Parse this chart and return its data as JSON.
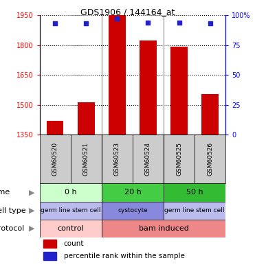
{
  "title": "GDS1906 / 144164_at",
  "samples": [
    "GSM60520",
    "GSM60521",
    "GSM60523",
    "GSM60524",
    "GSM60525",
    "GSM60526"
  ],
  "bar_values": [
    1420,
    1515,
    1950,
    1822,
    1793,
    1555
  ],
  "percentile_values": [
    93,
    93,
    97,
    94,
    94,
    93
  ],
  "ylim_left": [
    1350,
    1950
  ],
  "ylim_right": [
    0,
    100
  ],
  "yticks_left": [
    1350,
    1500,
    1650,
    1800,
    1950
  ],
  "yticks_right": [
    0,
    25,
    50,
    75,
    100
  ],
  "bar_color": "#cc0000",
  "dot_color": "#2222cc",
  "bar_width": 0.55,
  "time_info": [
    [
      0,
      2,
      "0 h",
      "#ccffcc"
    ],
    [
      2,
      4,
      "20 h",
      "#44cc44"
    ],
    [
      4,
      6,
      "50 h",
      "#33bb33"
    ]
  ],
  "cell_info": [
    [
      0,
      2,
      "germ line stem cell",
      "#bbbbee"
    ],
    [
      2,
      4,
      "cystocyte",
      "#8888dd"
    ],
    [
      4,
      6,
      "germ line stem cell",
      "#bbbbee"
    ]
  ],
  "prot_info": [
    [
      0,
      2,
      "control",
      "#ffcccc"
    ],
    [
      2,
      6,
      "bam induced",
      "#ee8888"
    ]
  ],
  "sample_box_color": "#cccccc",
  "legend_count_color": "#cc0000",
  "legend_dot_color": "#2222cc",
  "grid_color": "black",
  "left_label_color": "#888888"
}
